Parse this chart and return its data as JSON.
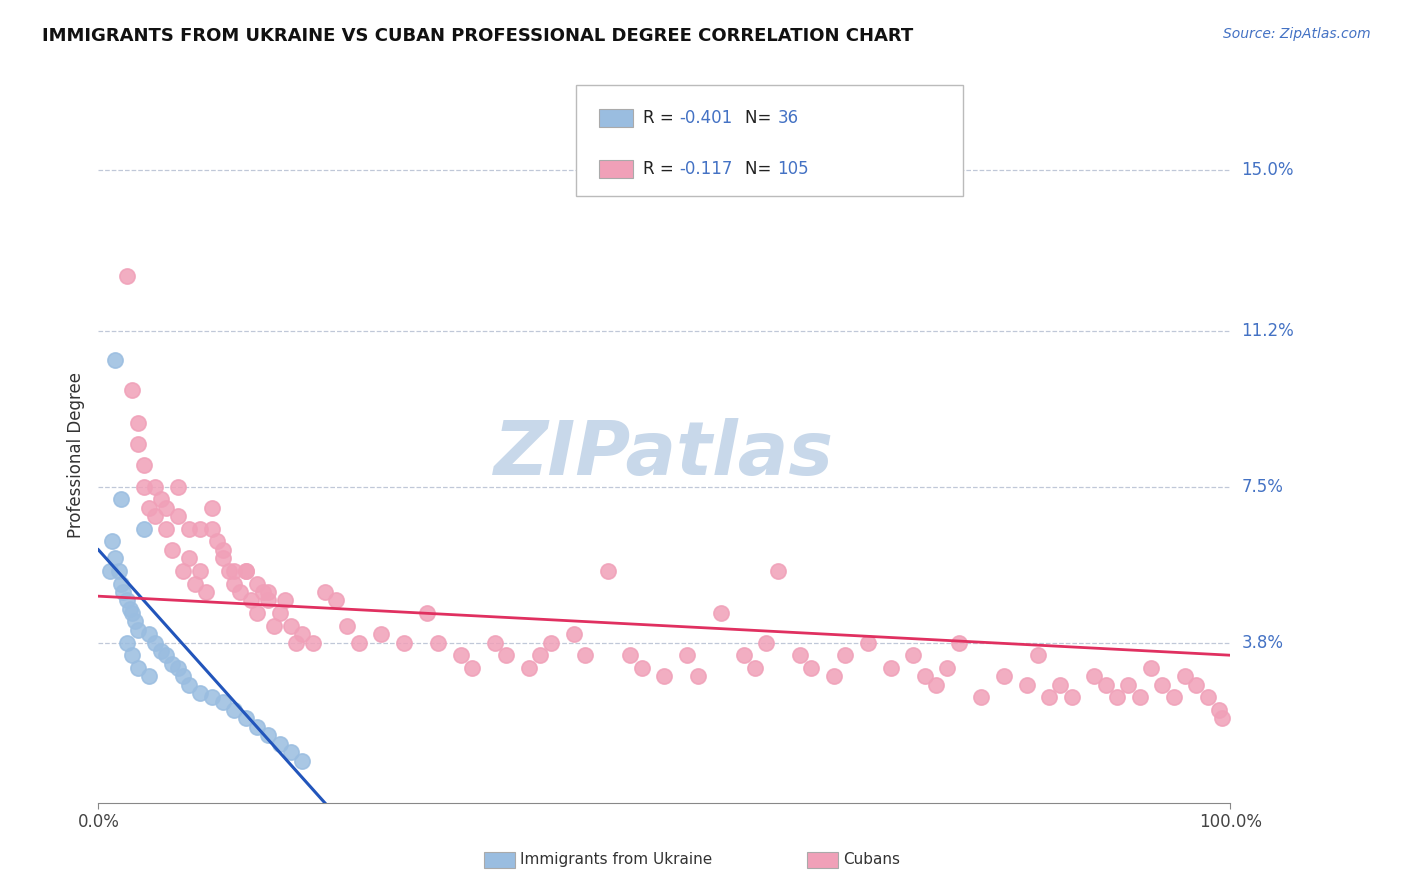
{
  "title": "IMMIGRANTS FROM UKRAINE VS CUBAN PROFESSIONAL DEGREE CORRELATION CHART",
  "source_text": "Source: ZipAtlas.com",
  "ylabel": "Professional Degree",
  "xmin": 0.0,
  "xmax": 100.0,
  "ymin": 0.0,
  "ymax": 16.5,
  "ytick_vals": [
    3.8,
    7.5,
    11.2,
    15.0
  ],
  "ytick_labels": [
    "3.8%",
    "7.5%",
    "11.2%",
    "15.0%"
  ],
  "xtick_labels": [
    "0.0%",
    "100.0%"
  ],
  "legend_ukraine_r": "-0.401",
  "legend_ukraine_n": "36",
  "legend_cuban_r": "-0.117",
  "legend_cuban_n": "105",
  "ukraine_color": "#9abde0",
  "cuban_color": "#f0a0b8",
  "ukraine_line_color": "#2255bb",
  "cuban_line_color": "#e03060",
  "watermark_color": "#c8d8ea",
  "background_color": "#ffffff",
  "ukraine_x": [
    1.0,
    1.2,
    1.5,
    1.8,
    2.0,
    2.2,
    2.5,
    2.8,
    3.0,
    3.2,
    3.5,
    4.0,
    4.5,
    5.0,
    5.5,
    6.0,
    6.5,
    7.0,
    7.5,
    8.0,
    9.0,
    10.0,
    11.0,
    12.0,
    13.0,
    14.0,
    15.0,
    16.0,
    17.0,
    18.0,
    1.5,
    2.0,
    2.5,
    3.0,
    3.5,
    4.5
  ],
  "ukraine_y": [
    5.5,
    6.2,
    5.8,
    5.5,
    5.2,
    5.0,
    4.8,
    4.6,
    4.5,
    4.3,
    4.1,
    6.5,
    4.0,
    3.8,
    3.6,
    3.5,
    3.3,
    3.2,
    3.0,
    2.8,
    2.6,
    2.5,
    2.4,
    2.2,
    2.0,
    1.8,
    1.6,
    1.4,
    1.2,
    1.0,
    10.5,
    7.2,
    3.8,
    3.5,
    3.2,
    3.0
  ],
  "cuban_x": [
    3.5,
    4.0,
    4.5,
    5.0,
    5.5,
    6.0,
    6.5,
    7.0,
    7.5,
    8.0,
    8.5,
    9.0,
    9.5,
    10.0,
    10.5,
    11.0,
    11.5,
    12.0,
    12.5,
    13.0,
    13.5,
    14.0,
    14.5,
    15.0,
    15.5,
    16.0,
    16.5,
    17.0,
    17.5,
    18.0,
    19.0,
    20.0,
    21.0,
    22.0,
    23.0,
    25.0,
    27.0,
    29.0,
    30.0,
    32.0,
    33.0,
    35.0,
    36.0,
    38.0,
    39.0,
    40.0,
    42.0,
    43.0,
    45.0,
    47.0,
    48.0,
    50.0,
    52.0,
    53.0,
    55.0,
    57.0,
    58.0,
    59.0,
    60.0,
    62.0,
    63.0,
    65.0,
    66.0,
    68.0,
    70.0,
    72.0,
    73.0,
    74.0,
    75.0,
    76.0,
    78.0,
    80.0,
    82.0,
    83.0,
    84.0,
    85.0,
    86.0,
    88.0,
    89.0,
    90.0,
    91.0,
    92.0,
    93.0,
    94.0,
    95.0,
    96.0,
    97.0,
    98.0,
    99.0,
    99.3,
    2.5,
    3.0,
    3.5,
    4.0,
    5.0,
    6.0,
    7.0,
    8.0,
    9.0,
    10.0,
    11.0,
    12.0,
    13.0,
    14.0,
    15.0
  ],
  "cuban_y": [
    8.5,
    7.5,
    7.0,
    6.8,
    7.2,
    6.5,
    6.0,
    6.8,
    5.5,
    5.8,
    5.2,
    5.5,
    5.0,
    6.5,
    6.2,
    5.8,
    5.5,
    5.2,
    5.0,
    5.5,
    4.8,
    4.5,
    5.0,
    4.8,
    4.2,
    4.5,
    4.8,
    4.2,
    3.8,
    4.0,
    3.8,
    5.0,
    4.8,
    4.2,
    3.8,
    4.0,
    3.8,
    4.5,
    3.8,
    3.5,
    3.2,
    3.8,
    3.5,
    3.2,
    3.5,
    3.8,
    4.0,
    3.5,
    5.5,
    3.5,
    3.2,
    3.0,
    3.5,
    3.0,
    4.5,
    3.5,
    3.2,
    3.8,
    5.5,
    3.5,
    3.2,
    3.0,
    3.5,
    3.8,
    3.2,
    3.5,
    3.0,
    2.8,
    3.2,
    3.8,
    2.5,
    3.0,
    2.8,
    3.5,
    2.5,
    2.8,
    2.5,
    3.0,
    2.8,
    2.5,
    2.8,
    2.5,
    3.2,
    2.8,
    2.5,
    3.0,
    2.8,
    2.5,
    2.2,
    2.0,
    12.5,
    9.8,
    9.0,
    8.0,
    7.5,
    7.0,
    7.5,
    6.5,
    6.5,
    7.0,
    6.0,
    5.5,
    5.5,
    5.2,
    5.0
  ],
  "ukraine_trend_x0": 0.0,
  "ukraine_trend_x1": 20.0,
  "ukraine_trend_y0": 6.0,
  "ukraine_trend_y1": 0.0,
  "cuban_trend_x0": 0.0,
  "cuban_trend_x1": 100.0,
  "cuban_trend_y0": 4.9,
  "cuban_trend_y1": 3.5
}
